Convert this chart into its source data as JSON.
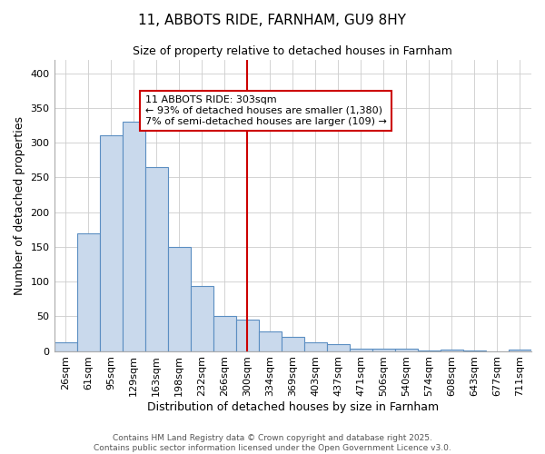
{
  "title": "11, ABBOTS RIDE, FARNHAM, GU9 8HY",
  "subtitle": "Size of property relative to detached houses in Farnham",
  "xlabel": "Distribution of detached houses by size in Farnham",
  "ylabel": "Number of detached properties",
  "bin_labels": [
    "26sqm",
    "61sqm",
    "95sqm",
    "129sqm",
    "163sqm",
    "198sqm",
    "232sqm",
    "266sqm",
    "300sqm",
    "334sqm",
    "369sqm",
    "403sqm",
    "437sqm",
    "471sqm",
    "506sqm",
    "540sqm",
    "574sqm",
    "608sqm",
    "643sqm",
    "677sqm",
    "711sqm"
  ],
  "bar_values": [
    12,
    170,
    311,
    331,
    265,
    150,
    93,
    50,
    45,
    28,
    20,
    13,
    10,
    4,
    4,
    3,
    1,
    2,
    1,
    0,
    2
  ],
  "bar_color": "#c9d9ec",
  "bar_edge_color": "#5b8ec2",
  "vline_index": 8,
  "vline_color": "#cc0000",
  "annotation_text": "11 ABBOTS RIDE: 303sqm\n← 93% of detached houses are smaller (1,380)\n7% of semi-detached houses are larger (109) →",
  "annotation_box_edge": "#cc0000",
  "ylim": [
    0,
    420
  ],
  "yticks": [
    0,
    50,
    100,
    150,
    200,
    250,
    300,
    350,
    400
  ],
  "footer1": "Contains HM Land Registry data © Crown copyright and database right 2025.",
  "footer2": "Contains public sector information licensed under the Open Government Licence v3.0.",
  "bg_color": "#ffffff",
  "grid_color": "#cccccc",
  "title_fontsize": 11,
  "subtitle_fontsize": 9,
  "axis_label_fontsize": 9,
  "tick_fontsize": 8,
  "annotation_fontsize": 8,
  "footer_fontsize": 6.5
}
